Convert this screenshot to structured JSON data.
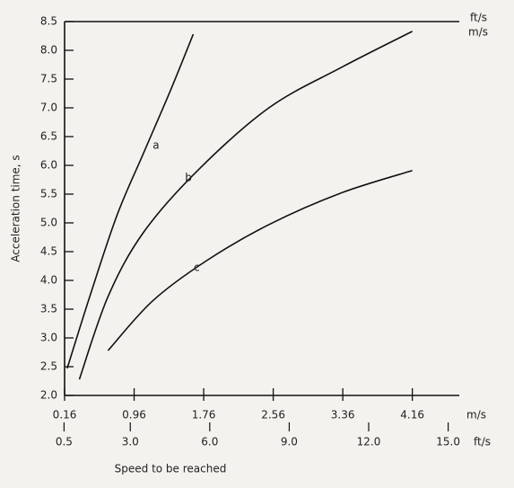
{
  "chart_data": {
    "type": "line",
    "y_label": "Acceleration time, s",
    "x_label": "Speed to be reached",
    "x_unit": "m/s",
    "x2_unit": "ft/s",
    "xlim": [
      0.16,
      4.7
    ],
    "xticks": [
      0.16,
      0.96,
      1.76,
      2.56,
      3.36,
      4.16
    ],
    "x2lim": [
      0.52,
      15.42
    ],
    "x2ticks": [
      0.5,
      {
        "value": 3,
        "label": "3.0"
      },
      {
        "value": 6,
        "label": "6.0"
      },
      {
        "value": 9,
        "label": "9.0"
      },
      {
        "value": 12,
        "label": "12.0"
      },
      {
        "value": 15,
        "label": "15.0"
      }
    ],
    "ylim": [
      2,
      8.5
    ],
    "yticks": [
      {
        "value": 2,
        "label": "2.0"
      },
      2.5,
      {
        "value": 3,
        "label": "3.0"
      },
      3.5,
      {
        "value": 4,
        "label": "4.0"
      },
      4.5,
      {
        "value": 5,
        "label": "5.0"
      },
      5.5,
      {
        "value": 6,
        "label": "6.0"
      },
      6.5,
      {
        "value": 7,
        "label": "7.0"
      },
      7.5,
      {
        "value": 8,
        "label": "8.0"
      },
      8.5
    ],
    "series": [
      {
        "name": "a",
        "color": "#111111",
        "x": [
          0.19,
          0.45,
          0.76,
          1.07,
          1.38,
          1.64
        ],
        "values": [
          2.47,
          3.72,
          5.12,
          6.22,
          7.31,
          8.28
        ]
      },
      {
        "name": "b",
        "color": "#111111",
        "x": [
          0.33,
          0.66,
          1.07,
          1.69,
          2.51,
          3.34,
          4.16
        ],
        "values": [
          2.28,
          3.72,
          4.84,
          5.91,
          7.0,
          7.7,
          8.33
        ]
      },
      {
        "name": "c",
        "color": "#111111",
        "x": [
          0.66,
          1.17,
          1.79,
          2.51,
          3.34,
          4.16
        ],
        "values": [
          2.78,
          3.64,
          4.34,
          4.97,
          5.52,
          5.91
        ]
      }
    ]
  }
}
